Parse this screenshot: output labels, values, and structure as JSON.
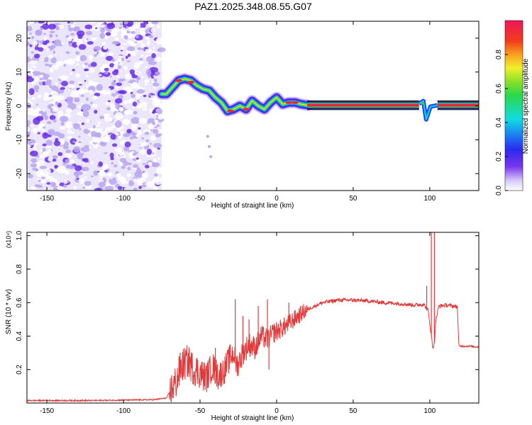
{
  "title": "PAZ1.2025.348.08.55.G07",
  "colors": {
    "snr_line": "#e03a3a",
    "spec_low": "#b8a6f0",
    "spec_mid": "#6a2ee8",
    "band_red": "#f0223c",
    "band_green": "#3cd23c",
    "band_blue": "#1a3cf0",
    "axis": "#000000"
  },
  "chart_data": [
    {
      "type": "heatmap",
      "name": "spectrogram",
      "xlabel": "Height of straight line (km)",
      "ylabel": "Frequency (Hz)",
      "xlim": [
        -163,
        132
      ],
      "ylim": [
        -25,
        25
      ],
      "xticks": [
        -150,
        -100,
        -50,
        0,
        50,
        100
      ],
      "yticks": [
        -20,
        -10,
        0,
        10,
        20
      ],
      "noise_region_x": [
        -163,
        -75
      ],
      "stable_band": {
        "x": [
          20,
          132
        ],
        "frequency": 0.2,
        "half_width": 1.0,
        "gap_x": [
          93,
          105
        ]
      },
      "signal_track": {
        "x": [
          -75,
          -72,
          -68,
          -64,
          -60,
          -56,
          -52,
          -48,
          -44,
          -40,
          -36,
          -32,
          -28,
          -24,
          -20,
          -16,
          -12,
          -8,
          -4,
          0,
          4,
          8,
          12,
          16,
          20
        ],
        "frequency": [
          3.5,
          3.5,
          5.5,
          7.5,
          8.0,
          7.5,
          6.0,
          5.0,
          4.5,
          2.5,
          1.0,
          -1.5,
          -1.0,
          0,
          -1.0,
          1.5,
          0.0,
          -1.0,
          1.0,
          2.5,
          0.5,
          1.0,
          1.0,
          0.5,
          0.2
        ]
      },
      "colorbar": {
        "label": "Normalized spectral amplitude",
        "range": [
          0,
          1
        ],
        "ticks": [
          "0.0",
          "0.2",
          "0.4",
          "0.6",
          "0.8"
        ],
        "tick_values": [
          0.0,
          0.2,
          0.4,
          0.6,
          0.8
        ]
      }
    },
    {
      "type": "line",
      "name": "snr",
      "xlabel": "Height of straight line (km)",
      "ylabel": "SNR (10 * v/v)",
      "scale_label": "(x10⁴)",
      "xlim": [
        -163,
        132
      ],
      "ylim": [
        0,
        1.02
      ],
      "xticks": [
        -150,
        -100,
        -50,
        0,
        50,
        100
      ],
      "yticks": [
        "0.2",
        "0.4",
        "0.6",
        "0.8",
        "1.0"
      ],
      "ytick_values": [
        0.2,
        0.4,
        0.6,
        0.8,
        1.0
      ],
      "series": [
        {
          "name": "SNR",
          "x": [
            -163,
            -120,
            -80,
            -72,
            -66,
            -62,
            -58,
            -54,
            -50,
            -46,
            -42,
            -38,
            -34,
            -30,
            -28,
            -26,
            -22,
            -18,
            -14,
            -10,
            -6,
            -2,
            2,
            6,
            10,
            14,
            20,
            30,
            40,
            50,
            60,
            70,
            80,
            90,
            96,
            99,
            101,
            102,
            103,
            104,
            106,
            110,
            115,
            118,
            119,
            125,
            132
          ],
          "y": [
            0.015,
            0.015,
            0.02,
            0.03,
            0.12,
            0.22,
            0.25,
            0.2,
            0.18,
            0.15,
            0.22,
            0.16,
            0.2,
            0.28,
            0.3,
            0.22,
            0.3,
            0.35,
            0.33,
            0.4,
            0.38,
            0.42,
            0.44,
            0.46,
            0.49,
            0.52,
            0.56,
            0.6,
            0.615,
            0.615,
            0.61,
            0.6,
            0.595,
            0.585,
            0.59,
            0.55,
            0.4,
            0.33,
            0.36,
            0.5,
            0.58,
            0.585,
            0.58,
            0.575,
            0.34,
            0.34,
            0.335
          ]
        }
      ],
      "spikes": [
        {
          "x": -63,
          "y": 0.3
        },
        {
          "x": -57,
          "y": 0.32
        },
        {
          "x": -52,
          "y": 0.27
        },
        {
          "x": -40,
          "y": 0.33
        },
        {
          "x": -27,
          "y": 0.62
        },
        {
          "x": -22,
          "y": 0.52
        },
        {
          "x": -18,
          "y": 0.5
        },
        {
          "x": -12,
          "y": 0.58
        },
        {
          "x": -6,
          "y": 0.62
        },
        {
          "x": -5,
          "y": 0.2
        },
        {
          "x": 8,
          "y": 0.6
        },
        {
          "x": 12,
          "y": 0.55
        },
        {
          "x": 98,
          "y": 0.7
        },
        {
          "x": 101,
          "y": 1.02
        },
        {
          "x": 103,
          "y": 1.02
        }
      ]
    }
  ]
}
